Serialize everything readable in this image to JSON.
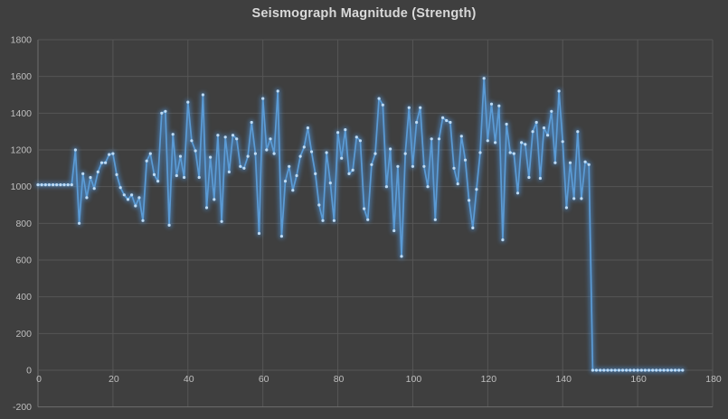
{
  "chart_data": {
    "type": "line",
    "title": "Seismograph Magnitude (Strength)",
    "xlabel": "",
    "ylabel": "",
    "xlim": [
      0,
      180
    ],
    "ylim": [
      -200,
      1800
    ],
    "grid": true,
    "legend": "none",
    "x_start": 0,
    "x_step": 1,
    "axes": {
      "x_ticks": [
        0,
        20,
        40,
        60,
        80,
        100,
        120,
        140,
        160,
        180
      ],
      "y_ticks": [
        1800,
        1600,
        1400,
        1200,
        1000,
        800,
        600,
        400,
        200,
        0,
        -200
      ]
    },
    "series": [
      {
        "name": "Seismograph Magnitude",
        "values": [
          1010,
          1010,
          1010,
          1010,
          1010,
          1010,
          1010,
          1010,
          1010,
          1010,
          1200,
          800,
          1070,
          940,
          1050,
          990,
          1080,
          1130,
          1130,
          1175,
          1180,
          1065,
          995,
          955,
          930,
          955,
          895,
          940,
          815,
          1140,
          1180,
          1065,
          1030,
          1400,
          1410,
          790,
          1285,
          1060,
          1165,
          1050,
          1460,
          1250,
          1195,
          1050,
          1500,
          885,
          1160,
          930,
          1280,
          810,
          1270,
          1080,
          1280,
          1260,
          1110,
          1100,
          1165,
          1350,
          1180,
          745,
          1480,
          1200,
          1260,
          1180,
          1520,
          730,
          1030,
          1110,
          980,
          1060,
          1165,
          1215,
          1320,
          1190,
          1070,
          900,
          815,
          1185,
          1020,
          815,
          1295,
          1155,
          1310,
          1070,
          1090,
          1270,
          1250,
          880,
          820,
          1120,
          1180,
          1480,
          1445,
          1000,
          1205,
          760,
          1110,
          620,
          1180,
          1430,
          1110,
          1350,
          1430,
          1110,
          1000,
          1260,
          820,
          1260,
          1375,
          1360,
          1350,
          1100,
          1015,
          1275,
          1145,
          925,
          775,
          985,
          1185,
          1590,
          1250,
          1450,
          1240,
          1440,
          710,
          1340,
          1185,
          1180,
          965,
          1240,
          1230,
          1050,
          1300,
          1350,
          1045,
          1320,
          1280,
          1410,
          1130,
          1520,
          1245,
          885,
          1130,
          935,
          1300,
          935,
          1135,
          1120,
          0,
          0,
          0,
          0,
          0,
          0,
          0,
          0,
          0,
          0,
          0,
          0,
          0,
          0,
          0,
          0,
          0,
          0,
          0,
          0,
          0,
          0,
          0,
          0,
          0
        ]
      }
    ],
    "style": {
      "background": "#3F3F3F",
      "gridline_color": "#565656",
      "axis_line_color": "#6E6E6E",
      "tick_label_color": "#BFBFBF",
      "title_color": "#D9D9D9",
      "line_color": "#5B9BD5",
      "marker_color": "#BDDBF5",
      "glow_color": "#4E94DB"
    }
  }
}
